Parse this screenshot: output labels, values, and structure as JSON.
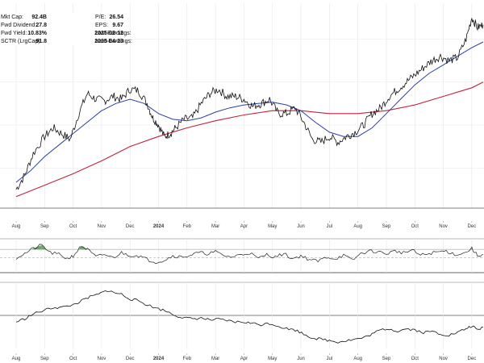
{
  "stats": {
    "left": [
      {
        "label": "Mkt Cap:",
        "value": "92.4B"
      },
      {
        "label": "Fwd Dividend:",
        "value": "27.8"
      },
      {
        "label": "Fwd Yield:",
        "value": "10.83%"
      },
      {
        "label": "SCTR (LrgCap):",
        "value": "91.8"
      }
    ],
    "right": [
      {
        "label": "P/E:",
        "value": "26.54"
      },
      {
        "label": "EPS:",
        "value": "9.67"
      },
      {
        "label": "Last Earnings:",
        "value": "2025-02-12"
      },
      {
        "label": "Next Earnings:",
        "value": "2025-04-23"
      }
    ]
  },
  "chart_data": {
    "type": "line",
    "grid": true,
    "axis_ticks": [
      {
        "label": "Aug",
        "pos": 0.0
      },
      {
        "label": "Sep",
        "pos": 1.0
      },
      {
        "label": "Oct",
        "pos": 2.0
      },
      {
        "label": "Nov",
        "pos": 3.0
      },
      {
        "label": "Dec",
        "pos": 4.0
      },
      {
        "label": "2024",
        "pos": 5.0,
        "bold": true
      },
      {
        "label": "Feb",
        "pos": 6.0
      },
      {
        "label": "Mar",
        "pos": 7.0
      },
      {
        "label": "Apr",
        "pos": 8.0
      },
      {
        "label": "May",
        "pos": 9.0
      },
      {
        "label": "Jun",
        "pos": 10.0
      },
      {
        "label": "Jul",
        "pos": 11.0
      },
      {
        "label": "Aug",
        "pos": 12.0
      },
      {
        "label": "Sep",
        "pos": 13.0
      },
      {
        "label": "Oct",
        "pos": 14.0
      },
      {
        "label": "Nov",
        "pos": 15.0
      },
      {
        "label": "Dec",
        "pos": 16.0
      }
    ],
    "price_panel": {
      "price": [
        [
          0,
          5
        ],
        [
          0.3,
          15
        ],
        [
          0.6,
          30
        ],
        [
          1.0,
          42
        ],
        [
          1.3,
          48
        ],
        [
          1.6,
          44
        ],
        [
          1.9,
          40
        ],
        [
          2.2,
          58
        ],
        [
          2.5,
          72
        ],
        [
          2.8,
          68
        ],
        [
          3.1,
          67
        ],
        [
          3.4,
          70
        ],
        [
          3.7,
          68
        ],
        [
          4.0,
          75
        ],
        [
          4.3,
          74
        ],
        [
          4.6,
          65
        ],
        [
          4.8,
          55
        ],
        [
          5.0,
          50
        ],
        [
          5.2,
          42
        ],
        [
          5.4,
          44
        ],
        [
          5.6,
          48
        ],
        [
          5.9,
          54
        ],
        [
          6.2,
          55
        ],
        [
          6.5,
          65
        ],
        [
          6.8,
          72
        ],
        [
          7.1,
          75
        ],
        [
          7.4,
          70
        ],
        [
          7.7,
          70
        ],
        [
          8.0,
          68
        ],
        [
          8.3,
          63
        ],
        [
          8.6,
          65
        ],
        [
          8.9,
          68
        ],
        [
          9.2,
          58
        ],
        [
          9.5,
          58
        ],
        [
          9.8,
          62
        ],
        [
          10.1,
          52
        ],
        [
          10.4,
          40
        ],
        [
          10.7,
          38
        ],
        [
          11.0,
          42
        ],
        [
          11.3,
          38
        ],
        [
          11.6,
          42
        ],
        [
          11.9,
          45
        ],
        [
          12.2,
          50
        ],
        [
          12.5,
          58
        ],
        [
          12.8,
          62
        ],
        [
          13.1,
          70
        ],
        [
          13.4,
          75
        ],
        [
          13.7,
          80
        ],
        [
          14.0,
          85
        ],
        [
          14.3,
          90
        ],
        [
          14.6,
          95
        ],
        [
          14.9,
          98
        ],
        [
          15.2,
          95
        ],
        [
          15.5,
          97
        ],
        [
          15.8,
          110
        ],
        [
          16.0,
          125
        ],
        [
          16.2,
          118
        ],
        [
          16.4,
          120
        ]
      ],
      "ma_50": [
        [
          0,
          10
        ],
        [
          0.5,
          18
        ],
        [
          1.0,
          28
        ],
        [
          1.5,
          36
        ],
        [
          2.0,
          44
        ],
        [
          2.5,
          52
        ],
        [
          3.0,
          60
        ],
        [
          3.5,
          65
        ],
        [
          4.0,
          68
        ],
        [
          4.5,
          65
        ],
        [
          5.0,
          58
        ],
        [
          5.5,
          54
        ],
        [
          6.0,
          53
        ],
        [
          6.5,
          55
        ],
        [
          7.0,
          59
        ],
        [
          7.5,
          62
        ],
        [
          8.0,
          64
        ],
        [
          8.5,
          65
        ],
        [
          9.0,
          66
        ],
        [
          9.5,
          64
        ],
        [
          10.0,
          60
        ],
        [
          10.5,
          52
        ],
        [
          11.0,
          45
        ],
        [
          11.5,
          42
        ],
        [
          12.0,
          42
        ],
        [
          12.5,
          48
        ],
        [
          13.0,
          58
        ],
        [
          13.5,
          68
        ],
        [
          14.0,
          78
        ],
        [
          14.5,
          86
        ],
        [
          15.0,
          92
        ],
        [
          15.5,
          98
        ],
        [
          16.0,
          104
        ],
        [
          16.4,
          108
        ]
      ],
      "ma_200": [
        [
          0,
          0
        ],
        [
          1.0,
          8
        ],
        [
          2.0,
          16
        ],
        [
          3.0,
          25
        ],
        [
          4.0,
          35
        ],
        [
          5.0,
          42
        ],
        [
          6.0,
          48
        ],
        [
          7.0,
          53
        ],
        [
          8.0,
          57
        ],
        [
          9.0,
          60
        ],
        [
          10.0,
          60
        ],
        [
          11.0,
          58
        ],
        [
          12.0,
          58
        ],
        [
          13.0,
          60
        ],
        [
          14.0,
          64
        ],
        [
          15.0,
          70
        ],
        [
          16.0,
          76
        ],
        [
          16.4,
          80
        ]
      ],
      "ylim": [
        -8,
        135
      ]
    },
    "oscillator_panel": {
      "values": [
        [
          0,
          50
        ],
        [
          0.3,
          60
        ],
        [
          0.6,
          72
        ],
        [
          0.9,
          80
        ],
        [
          1.2,
          62
        ],
        [
          1.5,
          58
        ],
        [
          1.8,
          48
        ],
        [
          2.0,
          55
        ],
        [
          2.3,
          78
        ],
        [
          2.5,
          70
        ],
        [
          2.8,
          52
        ],
        [
          3.1,
          58
        ],
        [
          3.4,
          50
        ],
        [
          3.7,
          62
        ],
        [
          4.0,
          56
        ],
        [
          4.3,
          55
        ],
        [
          4.6,
          46
        ],
        [
          4.9,
          40
        ],
        [
          5.2,
          44
        ],
        [
          5.5,
          55
        ],
        [
          5.8,
          52
        ],
        [
          6.1,
          56
        ],
        [
          6.4,
          62
        ],
        [
          6.7,
          60
        ],
        [
          7.0,
          64
        ],
        [
          7.3,
          55
        ],
        [
          7.6,
          52
        ],
        [
          7.9,
          58
        ],
        [
          8.2,
          62
        ],
        [
          8.5,
          48
        ],
        [
          8.8,
          58
        ],
        [
          9.1,
          52
        ],
        [
          9.4,
          60
        ],
        [
          9.7,
          48
        ],
        [
          10.0,
          55
        ],
        [
          10.3,
          46
        ],
        [
          10.6,
          42
        ],
        [
          10.9,
          52
        ],
        [
          11.2,
          48
        ],
        [
          11.5,
          56
        ],
        [
          11.8,
          44
        ],
        [
          12.1,
          60
        ],
        [
          12.4,
          66
        ],
        [
          12.7,
          64
        ],
        [
          13.0,
          60
        ],
        [
          13.3,
          66
        ],
        [
          13.6,
          62
        ],
        [
          13.9,
          68
        ],
        [
          14.2,
          56
        ],
        [
          14.5,
          60
        ],
        [
          14.8,
          64
        ],
        [
          15.1,
          66
        ],
        [
          15.4,
          58
        ],
        [
          15.7,
          60
        ],
        [
          16.0,
          72
        ],
        [
          16.2,
          55
        ],
        [
          16.4,
          58
        ]
      ],
      "overbought": 70,
      "mid": 50,
      "ylim": [
        15,
        95
      ]
    },
    "relative_panel": {
      "values": [
        [
          0,
          40
        ],
        [
          0.3,
          45
        ],
        [
          0.6,
          52
        ],
        [
          1.0,
          58
        ],
        [
          1.3,
          62
        ],
        [
          1.6,
          62
        ],
        [
          2.0,
          66
        ],
        [
          2.3,
          72
        ],
        [
          2.6,
          78
        ],
        [
          2.9,
          82
        ],
        [
          3.2,
          88
        ],
        [
          3.4,
          85
        ],
        [
          3.7,
          82
        ],
        [
          4.0,
          75
        ],
        [
          4.3,
          72
        ],
        [
          4.6,
          66
        ],
        [
          5.0,
          60
        ],
        [
          5.3,
          56
        ],
        [
          5.6,
          50
        ],
        [
          5.9,
          46
        ],
        [
          6.2,
          45
        ],
        [
          6.5,
          46
        ],
        [
          6.8,
          43
        ],
        [
          7.1,
          44
        ],
        [
          7.4,
          42
        ],
        [
          7.7,
          40
        ],
        [
          8.0,
          40
        ],
        [
          8.3,
          38
        ],
        [
          8.6,
          36
        ],
        [
          8.9,
          38
        ],
        [
          9.2,
          34
        ],
        [
          9.5,
          30
        ],
        [
          9.8,
          28
        ],
        [
          10.1,
          22
        ],
        [
          10.4,
          16
        ],
        [
          10.7,
          14
        ],
        [
          11.0,
          12
        ],
        [
          11.3,
          10
        ],
        [
          11.6,
          12
        ],
        [
          11.9,
          14
        ],
        [
          12.2,
          16
        ],
        [
          12.5,
          22
        ],
        [
          12.8,
          28
        ],
        [
          13.1,
          30
        ],
        [
          13.4,
          26
        ],
        [
          13.7,
          30
        ],
        [
          14.0,
          28
        ],
        [
          14.3,
          24
        ],
        [
          14.6,
          26
        ],
        [
          14.9,
          22
        ],
        [
          15.2,
          20
        ],
        [
          15.5,
          24
        ],
        [
          15.8,
          30
        ],
        [
          16.0,
          34
        ],
        [
          16.2,
          28
        ],
        [
          16.4,
          32
        ]
      ],
      "ylim": [
        0,
        100
      ]
    }
  }
}
